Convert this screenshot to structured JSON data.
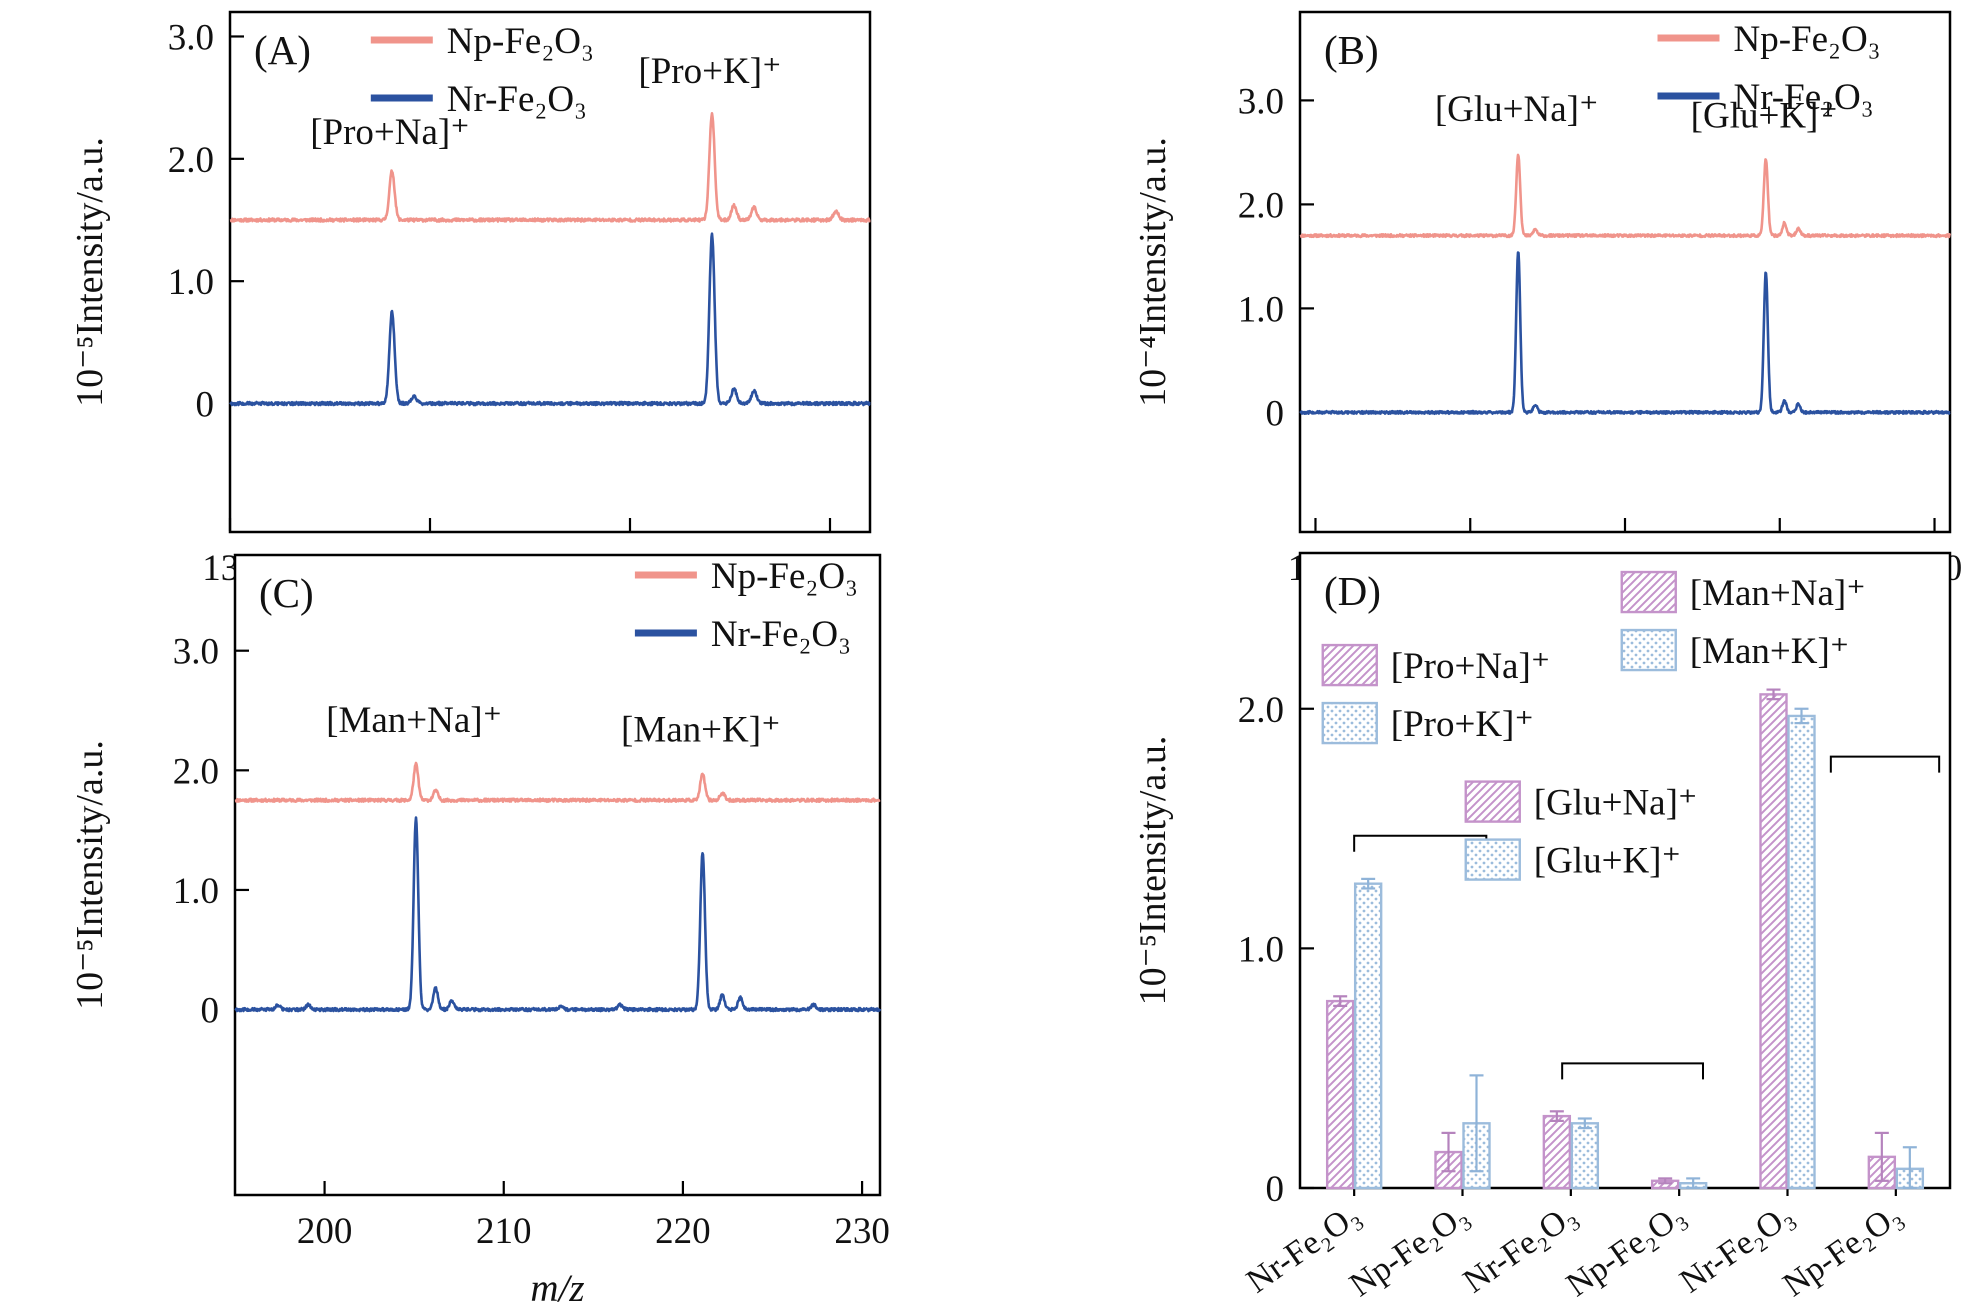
{
  "colors": {
    "np": "#f0948b",
    "nr": "#2b52a0",
    "bar_na_line": "#c493ca",
    "bar_na_err": "#b583bd",
    "bar_k_line": "#9cbcdc",
    "bar_k_err": "#8fb3d8",
    "axis": "#000000",
    "text": "#111111"
  },
  "chart_data": [
    {
      "id": "A",
      "type": "line",
      "panel_label": "(A)",
      "xlabel": "m/z",
      "ylabel": "10⁻⁵Intensity/a.u.",
      "xlim": [
        130,
        162
      ],
      "xticks": [
        130,
        140,
        150,
        160
      ],
      "ylim": [
        -1.05,
        3.2
      ],
      "yticks": [
        0,
        1,
        2,
        3
      ],
      "ytick_labels": [
        "0",
        "1.0",
        "2.0",
        "3.0"
      ],
      "legend": {
        "fx": 0.22,
        "y0": 28,
        "dy": 58
      },
      "series": [
        {
          "name": "Np-Fe₂O₃",
          "color_key": "np",
          "baseline": 1.5,
          "peaks": [
            {
              "mz": 138.1,
              "height": 0.4
            },
            {
              "mz": 154.1,
              "height": 0.87
            },
            {
              "mz": 155.2,
              "height": 0.12
            },
            {
              "mz": 156.2,
              "height": 0.1
            },
            {
              "mz": 160.3,
              "height": 0.07
            }
          ]
        },
        {
          "name": "Nr-Fe₂O₃",
          "color_key": "nr",
          "baseline": 0,
          "peaks": [
            {
              "mz": 138.1,
              "height": 0.75
            },
            {
              "mz": 139.2,
              "height": 0.06
            },
            {
              "mz": 154.1,
              "height": 1.38
            },
            {
              "mz": 155.2,
              "height": 0.12
            },
            {
              "mz": 156.2,
              "height": 0.1
            }
          ]
        }
      ],
      "annotations": [
        {
          "text": "[Pro+Na]⁺",
          "x": 138,
          "y": 2.12
        },
        {
          "text": "[Pro+K]⁺",
          "x": 154,
          "y": 2.62
        }
      ]
    },
    {
      "id": "B",
      "type": "line",
      "panel_label": "(B)",
      "xlabel": "m/z",
      "ylabel": "10⁻⁴Intensity/a.u.",
      "xlim": [
        189,
        231
      ],
      "xticks": [
        190,
        200,
        210,
        220,
        230
      ],
      "ylim": [
        -1.15,
        3.85
      ],
      "yticks": [
        0,
        1,
        2,
        3
      ],
      "ytick_labels": [
        "0",
        "1.0",
        "2.0",
        "3.0"
      ],
      "legend": {
        "fx": 0.55,
        "y0": 26,
        "dy": 58
      },
      "series": [
        {
          "name": "Np-Fe₂O₃",
          "color_key": "np",
          "baseline": 1.7,
          "peaks": [
            {
              "mz": 203.1,
              "height": 0.78
            },
            {
              "mz": 204.2,
              "height": 0.06
            },
            {
              "mz": 219.1,
              "height": 0.73
            },
            {
              "mz": 220.3,
              "height": 0.12
            },
            {
              "mz": 221.2,
              "height": 0.07
            }
          ]
        },
        {
          "name": "Nr-Fe₂O₃",
          "color_key": "nr",
          "baseline": 0,
          "peaks": [
            {
              "mz": 203.1,
              "height": 1.55
            },
            {
              "mz": 204.2,
              "height": 0.07
            },
            {
              "mz": 219.1,
              "height": 1.35
            },
            {
              "mz": 220.3,
              "height": 0.11
            },
            {
              "mz": 221.2,
              "height": 0.08
            }
          ]
        }
      ],
      "annotations": [
        {
          "text": "[Glu+Na]⁺",
          "x": 203,
          "y": 2.8
        },
        {
          "text": "[Glu+K]⁺",
          "x": 219,
          "y": 2.74
        }
      ]
    },
    {
      "id": "C",
      "type": "line",
      "panel_label": "(C)",
      "xlabel": "m/z",
      "ylabel": "10⁻⁵Intensity/a.u.",
      "xlim": [
        195,
        231
      ],
      "xticks": [
        200,
        210,
        220,
        230
      ],
      "ylim": [
        -1.55,
        3.8
      ],
      "yticks": [
        0,
        1,
        2,
        3
      ],
      "ytick_labels": [
        "0",
        "1.0",
        "2.0",
        "3.0"
      ],
      "legend": {
        "fx": 0.62,
        "y0": 20,
        "dy": 58
      },
      "series": [
        {
          "name": "Np-Fe₂O₃",
          "color_key": "np",
          "baseline": 1.75,
          "peaks": [
            {
              "mz": 205.1,
              "height": 0.3
            },
            {
              "mz": 206.2,
              "height": 0.08
            },
            {
              "mz": 221.1,
              "height": 0.22
            },
            {
              "mz": 222.2,
              "height": 0.06
            }
          ]
        },
        {
          "name": "Nr-Fe₂O₃",
          "color_key": "nr",
          "baseline": 0,
          "peaks": [
            {
              "mz": 197.4,
              "height": 0.04
            },
            {
              "mz": 199.1,
              "height": 0.04
            },
            {
              "mz": 205.1,
              "height": 1.6
            },
            {
              "mz": 206.2,
              "height": 0.18
            },
            {
              "mz": 207.1,
              "height": 0.07
            },
            {
              "mz": 213.2,
              "height": 0.03
            },
            {
              "mz": 216.5,
              "height": 0.04
            },
            {
              "mz": 221.1,
              "height": 1.32
            },
            {
              "mz": 222.2,
              "height": 0.12
            },
            {
              "mz": 223.2,
              "height": 0.1
            },
            {
              "mz": 227.3,
              "height": 0.04
            }
          ]
        }
      ],
      "annotations": [
        {
          "text": "[Man+Na]⁺",
          "x": 205,
          "y": 2.32
        },
        {
          "text": "[Man+K]⁺",
          "x": 221,
          "y": 2.24
        }
      ]
    },
    {
      "id": "D",
      "type": "bar",
      "panel_label": "(D)",
      "ylabel": "10⁻⁵Intensity/a.u.",
      "ylim": [
        0,
        2.65
      ],
      "yticks": [
        0,
        1,
        2
      ],
      "ytick_labels": [
        "0",
        "1.0",
        "2.0"
      ],
      "categories": [
        "Nr-Fe₂O₃",
        "Np-Fe₂O₃",
        "Nr-Fe₂O₃",
        "Np-Fe₂O₃",
        "Nr-Fe₂O₃",
        "Np-Fe₂O₃"
      ],
      "groups": [
        "Pro",
        "Pro",
        "Glu",
        "Glu",
        "Man",
        "Man"
      ],
      "series": [
        {
          "name": "Na adducts",
          "pattern": "hatch",
          "values": [
            0.78,
            0.15,
            0.3,
            0.03,
            2.06,
            0.13
          ],
          "errors": [
            0.02,
            0.08,
            0.02,
            0.01,
            0.02,
            0.1
          ]
        },
        {
          "name": "K adducts",
          "pattern": "dots",
          "values": [
            1.27,
            0.27,
            0.27,
            0.02,
            1.97,
            0.08
          ],
          "errors": [
            0.02,
            0.2,
            0.02,
            0.02,
            0.03,
            0.09
          ]
        }
      ],
      "legend_pairs": [
        {
          "fx": 0.035,
          "fy": 0.145,
          "rows": [
            {
              "label": "[Pro+Na]⁺",
              "pattern": "hatch"
            },
            {
              "label": "[Pro+K]⁺",
              "pattern": "dots"
            }
          ]
        },
        {
          "fx": 0.255,
          "fy": 0.36,
          "rows": [
            {
              "label": "[Glu+Na]⁺",
              "pattern": "hatch"
            },
            {
              "label": "[Glu+K]⁺",
              "pattern": "dots"
            }
          ]
        },
        {
          "fx": 0.495,
          "fy": 0.03,
          "rows": [
            {
              "label": "[Man+Na]⁺",
              "pattern": "hatch"
            },
            {
              "label": "[Man+K]⁺",
              "pattern": "dots"
            }
          ]
        }
      ],
      "brackets": [
        {
          "x1": 0.5,
          "x2": 1.72,
          "y": 1.47
        },
        {
          "x1": 2.42,
          "x2": 3.72,
          "y": 0.52
        },
        {
          "x1": 4.9,
          "x2": 5.9,
          "y": 1.8
        }
      ]
    }
  ]
}
